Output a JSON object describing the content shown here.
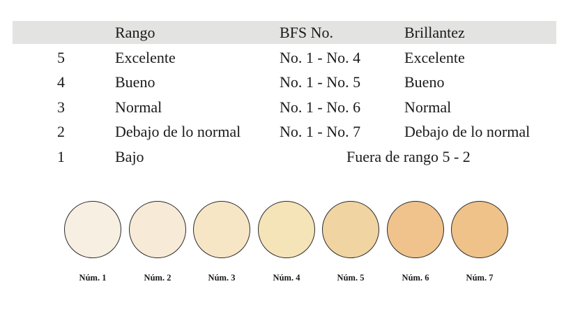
{
  "header": {
    "rango": "Rango",
    "bfs": "BFS No.",
    "brillantez": "Brillantez"
  },
  "rows": [
    {
      "num": "5",
      "rango": "Excelente",
      "bfs": "No. 1 - No. 4",
      "brillantez": "Excelente"
    },
    {
      "num": "4",
      "rango": "Bueno",
      "bfs": "No. 1 - No. 5",
      "brillantez": "Bueno"
    },
    {
      "num": "3",
      "rango": "Normal",
      "bfs": "No. 1 - No. 6",
      "brillantez": "Normal"
    },
    {
      "num": "2",
      "rango": "Debajo de lo normal",
      "bfs": "No. 1 - No. 7",
      "brillantez": "Debajo de lo normal"
    },
    {
      "num": "1",
      "rango": "Bajo",
      "span": "Fuera de rango 5 - 2"
    }
  ],
  "swatches": [
    {
      "label": "Núm. 1",
      "color": "#f7efe2"
    },
    {
      "label": "Núm. 2",
      "color": "#f7ead6"
    },
    {
      "label": "Núm. 3",
      "color": "#f7e6c5"
    },
    {
      "label": "Núm. 4",
      "color": "#f5e4b8"
    },
    {
      "label": "Núm. 5",
      "color": "#f0d4a2"
    },
    {
      "label": "Núm. 6",
      "color": "#f0c38d"
    },
    {
      "label": "Núm. 7",
      "color": "#eec289"
    }
  ],
  "colors": {
    "header_band": "#e3e3e1",
    "text": "#1a1a1a",
    "swatch_border": "#2a2a2a"
  }
}
